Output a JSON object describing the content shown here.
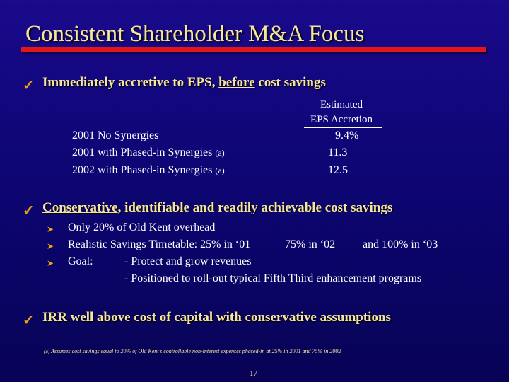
{
  "title": "Consistent Shareholder M&A Focus",
  "bullets": {
    "b1": {
      "text": "Immediately accretive to EPS, ",
      "underlined": "before",
      "rest": " cost savings"
    },
    "b2": {
      "underlined": "Conservative",
      "rest": ", identifiable and readily achievable cost savings"
    },
    "b3": {
      "text": "IRR well above cost of capital with conservative assumptions"
    }
  },
  "accretion_table": {
    "header_line1": "Estimated",
    "header_line2": "EPS Accretion",
    "rows": [
      {
        "label": "2001 No Synergies",
        "note": "",
        "value": "9.4%"
      },
      {
        "label": "2001 with Phased-in Synergies ",
        "note": "(a)",
        "value": "11.3"
      },
      {
        "label": "2002 with Phased-in Synergies ",
        "note": "(a)",
        "value": "12.5"
      }
    ]
  },
  "sub_bullets": {
    "s1": "Only 20% of Old Kent overhead",
    "s2a": "Realistic Savings Timetable:  25% in ‘01",
    "s2b": "75% in ‘02",
    "s2c": "and 100% in ‘03",
    "s3_label": "Goal:",
    "s3_line1": "- Protect and grow revenues",
    "s3_line2": "- Positioned to roll-out typical Fifth Third enhancement programs"
  },
  "footnote": {
    "mark": "(a)",
    "text": " Assumes cost savings equal to 20% of Old Kent’s controllable non-interest expenses phased-in at 25% in 2001 and 75% in 2002"
  },
  "page_number": "17",
  "colors": {
    "title": "#f5e69a",
    "bar": "#e3141b",
    "check": "#e8a015",
    "background": "#100679"
  }
}
